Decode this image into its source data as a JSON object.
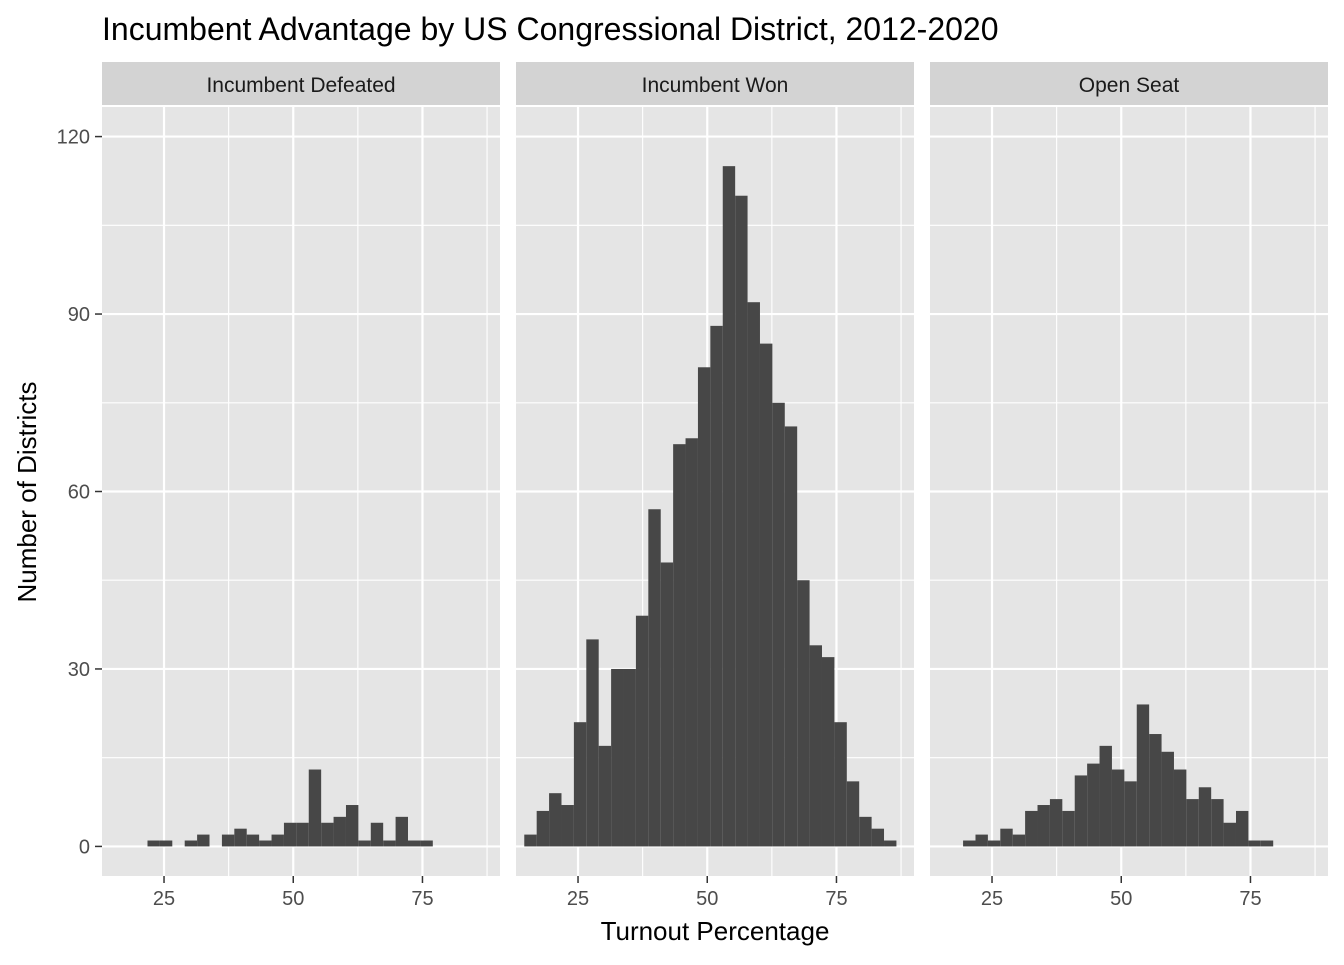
{
  "chart_data": {
    "type": "bar",
    "title": "Incumbent Advantage by US Congressional District, 2012-2020",
    "xlabel": "Turnout Percentage",
    "ylabel": "Number of Districts",
    "xlim": [
      13,
      90
    ],
    "ylim": [
      -5,
      125
    ],
    "x_ticks": [
      25,
      50,
      75
    ],
    "y_ticks": [
      0,
      30,
      60,
      90,
      120
    ],
    "bin_width": 2.4,
    "grid": true,
    "colors": {
      "bar": "#474747",
      "panel_background": "#e5e5e5",
      "strip_background": "#d3d3d3",
      "grid": "#ffffff"
    },
    "panels": [
      {
        "label": "Incumbent Defeated",
        "bins": [
          {
            "x": 23.0,
            "value": 1
          },
          {
            "x": 25.4,
            "value": 1
          },
          {
            "x": 30.2,
            "value": 1
          },
          {
            "x": 32.6,
            "value": 2
          },
          {
            "x": 37.4,
            "value": 2
          },
          {
            "x": 39.8,
            "value": 3
          },
          {
            "x": 42.2,
            "value": 2
          },
          {
            "x": 44.6,
            "value": 1
          },
          {
            "x": 47.0,
            "value": 2
          },
          {
            "x": 49.4,
            "value": 4
          },
          {
            "x": 51.8,
            "value": 4
          },
          {
            "x": 54.2,
            "value": 13
          },
          {
            "x": 56.6,
            "value": 4
          },
          {
            "x": 59.0,
            "value": 5
          },
          {
            "x": 61.4,
            "value": 7
          },
          {
            "x": 63.8,
            "value": 1
          },
          {
            "x": 66.2,
            "value": 4
          },
          {
            "x": 68.6,
            "value": 1
          },
          {
            "x": 71.0,
            "value": 5
          },
          {
            "x": 73.4,
            "value": 1
          },
          {
            "x": 75.8,
            "value": 1
          }
        ]
      },
      {
        "label": "Incumbent Won",
        "bins": [
          {
            "x": 15.8,
            "value": 2
          },
          {
            "x": 18.2,
            "value": 6
          },
          {
            "x": 20.6,
            "value": 9
          },
          {
            "x": 23.0,
            "value": 7
          },
          {
            "x": 25.4,
            "value": 21
          },
          {
            "x": 27.8,
            "value": 35
          },
          {
            "x": 30.2,
            "value": 17
          },
          {
            "x": 32.6,
            "value": 30
          },
          {
            "x": 35.0,
            "value": 30
          },
          {
            "x": 37.4,
            "value": 39
          },
          {
            "x": 39.8,
            "value": 57
          },
          {
            "x": 42.2,
            "value": 48
          },
          {
            "x": 44.6,
            "value": 68
          },
          {
            "x": 47.0,
            "value": 69
          },
          {
            "x": 49.4,
            "value": 81
          },
          {
            "x": 51.8,
            "value": 88
          },
          {
            "x": 54.2,
            "value": 115
          },
          {
            "x": 56.6,
            "value": 110
          },
          {
            "x": 59.0,
            "value": 92
          },
          {
            "x": 61.4,
            "value": 85
          },
          {
            "x": 63.8,
            "value": 75
          },
          {
            "x": 66.2,
            "value": 71
          },
          {
            "x": 68.6,
            "value": 45
          },
          {
            "x": 71.0,
            "value": 34
          },
          {
            "x": 73.4,
            "value": 32
          },
          {
            "x": 75.8,
            "value": 21
          },
          {
            "x": 78.2,
            "value": 11
          },
          {
            "x": 80.6,
            "value": 5
          },
          {
            "x": 83.0,
            "value": 3
          },
          {
            "x": 85.4,
            "value": 1
          }
        ]
      },
      {
        "label": "Open Seat",
        "bins": [
          {
            "x": 20.6,
            "value": 1
          },
          {
            "x": 23.0,
            "value": 2
          },
          {
            "x": 25.4,
            "value": 1
          },
          {
            "x": 27.8,
            "value": 3
          },
          {
            "x": 30.2,
            "value": 2
          },
          {
            "x": 32.6,
            "value": 6
          },
          {
            "x": 35.0,
            "value": 7
          },
          {
            "x": 37.4,
            "value": 8
          },
          {
            "x": 39.8,
            "value": 6
          },
          {
            "x": 42.2,
            "value": 12
          },
          {
            "x": 44.6,
            "value": 14
          },
          {
            "x": 47.0,
            "value": 17
          },
          {
            "x": 49.4,
            "value": 13
          },
          {
            "x": 51.8,
            "value": 11
          },
          {
            "x": 54.2,
            "value": 24
          },
          {
            "x": 56.6,
            "value": 19
          },
          {
            "x": 59.0,
            "value": 16
          },
          {
            "x": 61.4,
            "value": 13
          },
          {
            "x": 63.8,
            "value": 8
          },
          {
            "x": 66.2,
            "value": 10
          },
          {
            "x": 68.6,
            "value": 8
          },
          {
            "x": 71.0,
            "value": 4
          },
          {
            "x": 73.4,
            "value": 6
          },
          {
            "x": 75.8,
            "value": 1
          },
          {
            "x": 78.2,
            "value": 1
          }
        ]
      }
    ]
  }
}
